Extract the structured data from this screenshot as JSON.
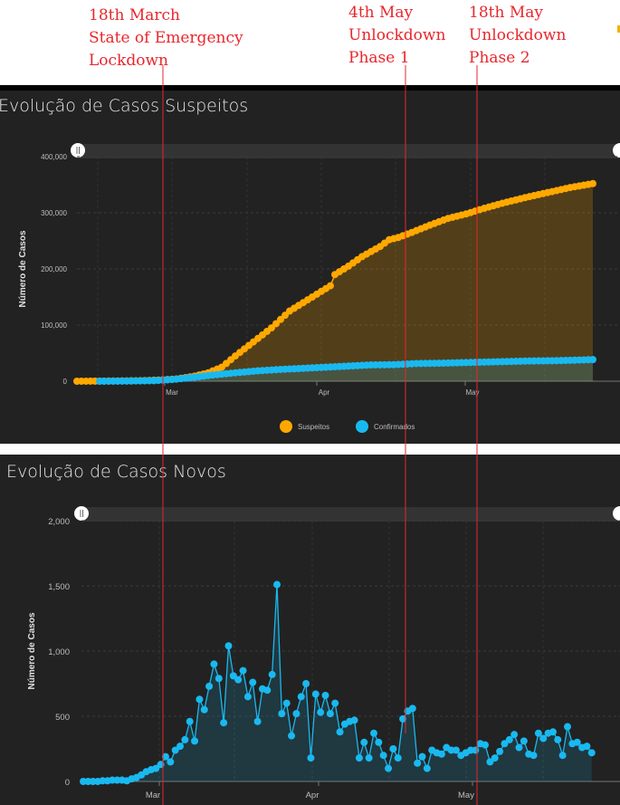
{
  "annotations": [
    {
      "text": "18th  March\nState  of  Emergency\nLockdown"
    },
    {
      "text": "4th  May\nUnlockdown\nPhase  1"
    },
    {
      "text": "18th  May\nUnlockdown\nPhase  2"
    }
  ],
  "colors": {
    "accent_line": "#e8262c",
    "suspeitos": "#ffa800",
    "confirmados": "#19b9f0"
  },
  "chart_data": [
    {
      "type": "area",
      "title": "Evolução de Casos Suspeitos",
      "ylabel": "Número de Casos",
      "xlabel": "",
      "ylim": [
        0,
        400000
      ],
      "yticks": [
        "0",
        "100,000",
        "200,000",
        "300,000",
        "400,000"
      ],
      "xticks": [
        "Mar",
        "Apr",
        "May"
      ],
      "legend": "bottom-center",
      "x_day_range": [
        1,
        100
      ],
      "series": [
        {
          "name": "Suspeitos",
          "points": [
            [
              1,
              0
            ],
            [
              6,
              200
            ],
            [
              10,
              500
            ],
            [
              15,
              1000
            ],
            [
              19,
              2000
            ],
            [
              23,
              4000
            ],
            [
              27,
              9000
            ],
            [
              30,
              15000
            ],
            [
              33,
              25000
            ],
            [
              36,
              45000
            ],
            [
              40,
              70000
            ],
            [
              44,
              95000
            ],
            [
              48,
              125000
            ],
            [
              52,
              145000
            ],
            [
              55,
              160000
            ],
            [
              57,
              170000
            ],
            [
              58,
              190000
            ],
            [
              61,
              205000
            ],
            [
              64,
              222000
            ],
            [
              68,
              240000
            ],
            [
              70,
              252000
            ],
            [
              72,
              256000
            ],
            [
              75,
              265000
            ],
            [
              79,
              278000
            ],
            [
              83,
              290000
            ],
            [
              87,
              298000
            ],
            [
              91,
              308000
            ],
            [
              95,
              317000
            ],
            [
              100,
              327000
            ],
            [
              105,
              336000
            ],
            [
              110,
              345000
            ],
            [
              115,
              352000
            ]
          ]
        },
        {
          "name": "Confirmados",
          "points": [
            [
              6,
              0
            ],
            [
              12,
              300
            ],
            [
              18,
              1000
            ],
            [
              22,
              3000
            ],
            [
              27,
              7000
            ],
            [
              31,
              11000
            ],
            [
              36,
              15000
            ],
            [
              41,
              18500
            ],
            [
              46,
              21000
            ],
            [
              51,
              23000
            ],
            [
              56,
              25000
            ],
            [
              61,
              27000
            ],
            [
              66,
              29000
            ],
            [
              71,
              29500
            ],
            [
              76,
              31500
            ],
            [
              81,
              32000
            ],
            [
              86,
              33000
            ],
            [
              91,
              34000
            ],
            [
              96,
              35000
            ],
            [
              101,
              36000
            ],
            [
              106,
              36500
            ],
            [
              111,
              37500
            ],
            [
              115,
              38500
            ]
          ]
        }
      ]
    },
    {
      "type": "line",
      "title": "Evolução de Casos Novos",
      "ylabel": "Número de Casos",
      "xlabel": "",
      "ylim": [
        0,
        2000
      ],
      "yticks": [
        "0",
        "500",
        "1,000",
        "1,500",
        "2,000"
      ],
      "xticks": [
        "Mar",
        "Apr",
        "May"
      ],
      "x_day_range": [
        1,
        100
      ],
      "series": [
        {
          "name": "Casos Novos",
          "values": [
            0,
            0,
            0,
            0,
            5,
            5,
            10,
            10,
            10,
            5,
            20,
            30,
            50,
            75,
            90,
            100,
            130,
            190,
            150,
            240,
            270,
            320,
            460,
            310,
            630,
            550,
            730,
            900,
            790,
            450,
            1040,
            810,
            780,
            850,
            650,
            760,
            460,
            710,
            700,
            820,
            1510,
            520,
            600,
            350,
            520,
            650,
            750,
            180,
            670,
            530,
            660,
            520,
            600,
            380,
            440,
            460,
            470,
            180,
            300,
            180,
            370,
            300,
            200,
            100,
            250,
            180,
            480,
            540,
            560,
            140,
            190,
            100,
            240,
            220,
            210,
            260,
            240,
            240,
            200,
            220,
            240,
            240,
            290,
            280,
            150,
            180,
            230,
            290,
            320,
            360,
            260,
            310,
            210,
            200,
            370,
            330,
            370,
            380,
            320,
            200,
            420,
            290,
            300,
            260,
            270,
            220
          ]
        }
      ]
    }
  ]
}
